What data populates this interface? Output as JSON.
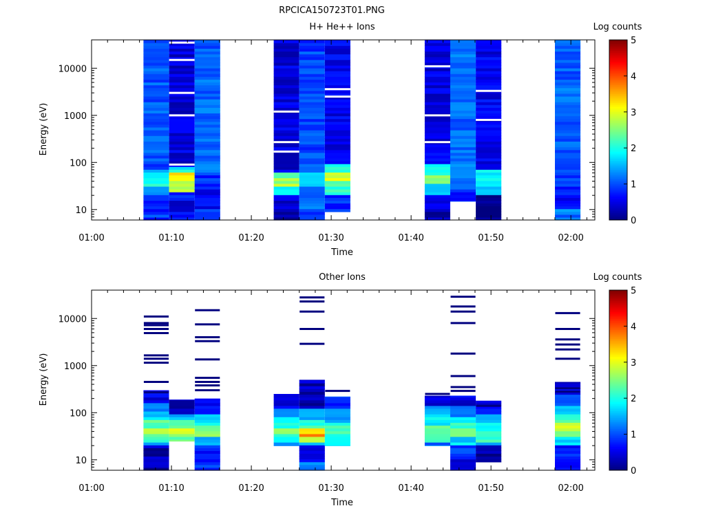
{
  "figure_title": "RPCICA150723T01.PNG",
  "colorscale": [
    "#00007f",
    "#0000ff",
    "#007fff",
    "#00ffff",
    "#7fff7f",
    "#ffff00",
    "#ff7f00",
    "#ff0000",
    "#7f0000"
  ],
  "chart_data": [
    {
      "type": "heatmap",
      "title": "H+ He++ Ions",
      "xlabel": "Time",
      "ylabel": "Energy (eV)",
      "colorbar_label": "Log counts",
      "colorbar_ticks": [
        "0",
        "1",
        "2",
        "3",
        "4",
        "5"
      ],
      "clim": [
        0,
        5
      ],
      "x_ticks": [
        "01:00",
        "01:10",
        "01:20",
        "01:30",
        "01:40",
        "01:50",
        "02:00"
      ],
      "xlim_minutes": [
        0,
        63
      ],
      "y_ticks": [
        "10",
        "100",
        "1000",
        "10000"
      ],
      "ylim": [
        6,
        40000
      ],
      "y_scale": "log",
      "columns": [
        {
          "t_start": 6.5,
          "t_end": 9.7,
          "e_min": 6,
          "e_max": 40000,
          "bands": [
            [
              6,
              9,
              0.9
            ],
            [
              9,
              20,
              0.75
            ],
            [
              20,
              30,
              1.3
            ],
            [
              30,
              45,
              2.0
            ],
            [
              45,
              70,
              1.7
            ],
            [
              70,
              110,
              0.8
            ],
            [
              110,
              40000,
              1.05
            ]
          ]
        },
        {
          "t_start": 9.7,
          "t_end": 12.9,
          "e_min": 6,
          "e_max": 40000,
          "bands": [
            [
              6,
              9,
              0.6
            ],
            [
              9,
              15,
              0.3
            ],
            [
              15,
              25,
              0.7
            ],
            [
              25,
              40,
              2.8
            ],
            [
              40,
              60,
              3.2
            ],
            [
              60,
              80,
              1.9
            ],
            [
              80,
              40000,
              0.45
            ]
          ],
          "gaps": [
            90,
            1000,
            3000,
            15000,
            35000
          ]
        },
        {
          "t_start": 12.9,
          "t_end": 16.1,
          "e_min": 6,
          "e_max": 40000,
          "bands": [
            [
              6,
              10,
              1.0
            ],
            [
              10,
              30,
              0.65
            ],
            [
              30,
              60,
              0.85
            ],
            [
              60,
              40000,
              1.1
            ]
          ]
        },
        {
          "t_start": 22.8,
          "t_end": 26.0,
          "e_min": 6,
          "e_max": 40000,
          "bands": [
            [
              6,
              9,
              0.2
            ],
            [
              9,
              20,
              0.45
            ],
            [
              20,
              30,
              1.7
            ],
            [
              30,
              45,
              2.7
            ],
            [
              45,
              60,
              2.2
            ],
            [
              60,
              40000,
              0.45
            ]
          ],
          "gaps": [
            270,
            1200,
            170
          ]
        },
        {
          "t_start": 26.0,
          "t_end": 29.2,
          "e_min": 6,
          "e_max": 40000,
          "bands": [
            [
              6,
              10,
              0.8
            ],
            [
              10,
              30,
              1.1
            ],
            [
              30,
              60,
              1.6
            ],
            [
              60,
              40000,
              0.95
            ]
          ]
        },
        {
          "t_start": 29.2,
          "t_end": 32.4,
          "e_min": 9,
          "e_max": 40000,
          "bands": [
            [
              9,
              20,
              0.8
            ],
            [
              20,
              40,
              2.2
            ],
            [
              40,
              60,
              3.0
            ],
            [
              60,
              90,
              1.9
            ],
            [
              90,
              40000,
              0.55
            ]
          ],
          "gaps": [
            2500,
            3600
          ]
        },
        {
          "t_start": 41.7,
          "t_end": 44.9,
          "e_min": 6,
          "e_max": 40000,
          "bands": [
            [
              6,
              9,
              0.2
            ],
            [
              9,
              20,
              0.6
            ],
            [
              20,
              35,
              1.8
            ],
            [
              35,
              55,
              2.5
            ],
            [
              55,
              90,
              1.9
            ],
            [
              90,
              40000,
              0.5
            ]
          ],
          "gaps": [
            270,
            1000,
            11000
          ]
        },
        {
          "t_start": 44.9,
          "t_end": 48.1,
          "e_min": 15,
          "e_max": 40000,
          "bands": [
            [
              15,
              25,
              0.7
            ],
            [
              25,
              40,
              1.0
            ],
            [
              40,
              40000,
              1.15
            ]
          ]
        },
        {
          "t_start": 48.1,
          "t_end": 51.3,
          "e_min": 6,
          "e_max": 40000,
          "bands": [
            [
              6,
              9,
              0.15
            ],
            [
              9,
              20,
              0.0
            ],
            [
              20,
              30,
              1.7
            ],
            [
              30,
              45,
              2.0
            ],
            [
              45,
              70,
              1.9
            ],
            [
              70,
              40000,
              0.55
            ]
          ],
          "gaps": [
            800,
            3300
          ]
        },
        {
          "t_start": 58.0,
          "t_end": 61.2,
          "e_min": 6,
          "e_max": 40000,
          "bands": [
            [
              6,
              10,
              1.2
            ],
            [
              10,
              20,
              0.6
            ],
            [
              20,
              100,
              0.85
            ],
            [
              100,
              40000,
              1.1
            ]
          ]
        }
      ]
    },
    {
      "type": "heatmap",
      "title": "Other Ions",
      "xlabel": "Time",
      "ylabel": "Energy (eV)",
      "colorbar_label": "Log counts",
      "colorbar_ticks": [
        "0",
        "1",
        "2",
        "3",
        "4",
        "5"
      ],
      "clim": [
        0,
        5
      ],
      "x_ticks": [
        "01:00",
        "01:10",
        "01:20",
        "01:30",
        "01:40",
        "01:50",
        "02:00"
      ],
      "xlim_minutes": [
        0,
        63
      ],
      "y_ticks": [
        "10",
        "100",
        "1000",
        "10000"
      ],
      "ylim": [
        6,
        40000
      ],
      "y_scale": "log",
      "columns": [
        {
          "t_start": 6.5,
          "t_end": 9.7,
          "e_min": 6,
          "e_max": 300,
          "bands": [
            [
              6,
              20,
              0.25
            ],
            [
              20,
              25,
              1.4
            ],
            [
              25,
              35,
              2.2
            ],
            [
              35,
              50,
              2.7
            ],
            [
              50,
              70,
              2.4
            ],
            [
              70,
              110,
              1.7
            ],
            [
              110,
              160,
              1.2
            ],
            [
              160,
              300,
              0.5
            ]
          ],
          "lines": [
            270,
            450,
            1150,
            1400,
            1650,
            4900,
            6000,
            7200,
            8000,
            11000
          ]
        },
        {
          "t_start": 9.7,
          "t_end": 12.9,
          "e_min": 25,
          "e_max": 190,
          "bands": [
            [
              25,
              35,
              2.4
            ],
            [
              35,
              50,
              3.1
            ],
            [
              50,
              70,
              2.3
            ],
            [
              70,
              100,
              1.4
            ],
            [
              100,
              190,
              0.3
            ]
          ]
        },
        {
          "t_start": 12.9,
          "t_end": 16.1,
          "e_min": 6,
          "e_max": 200,
          "bands": [
            [
              6,
              20,
              0.8
            ],
            [
              20,
              30,
              1.6
            ],
            [
              30,
              45,
              2.6
            ],
            [
              45,
              65,
              2.2
            ],
            [
              65,
              100,
              1.5
            ],
            [
              100,
              200,
              0.6
            ]
          ],
          "lines": [
            300,
            380,
            450,
            550,
            1350,
            3300,
            4000,
            7500,
            15000
          ]
        },
        {
          "t_start": 22.8,
          "t_end": 26.0,
          "e_min": 20,
          "e_max": 250,
          "bands": [
            [
              20,
              25,
              1.5
            ],
            [
              25,
              35,
              2.1
            ],
            [
              35,
              50,
              2.8
            ],
            [
              50,
              80,
              2.0
            ],
            [
              80,
              130,
              1.2
            ],
            [
              130,
              250,
              0.5
            ]
          ]
        },
        {
          "t_start": 26.0,
          "t_end": 29.2,
          "e_min": 6,
          "e_max": 500,
          "bands": [
            [
              6,
              9,
              1.2
            ],
            [
              9,
              13,
              0.5
            ],
            [
              13,
              20,
              0.3
            ],
            [
              20,
              25,
              1.7
            ],
            [
              25,
              30,
              2.6
            ],
            [
              30,
              38,
              3.7
            ],
            [
              38,
              50,
              3.2
            ],
            [
              50,
              70,
              2.1
            ],
            [
              70,
              130,
              1.4
            ],
            [
              130,
              500,
              0.3
            ]
          ],
          "lines": [
            2900,
            6000,
            14000,
            23000,
            28000
          ]
        },
        {
          "t_start": 29.2,
          "t_end": 32.4,
          "e_min": 20,
          "e_max": 220,
          "bands": [
            [
              20,
              30,
              1.7
            ],
            [
              30,
              60,
              2.2
            ],
            [
              60,
              130,
              1.5
            ],
            [
              130,
              220,
              0.9
            ]
          ],
          "lines": [
            290
          ]
        },
        {
          "t_start": 41.7,
          "t_end": 44.9,
          "e_min": 20,
          "e_max": 230,
          "bands": [
            [
              20,
              25,
              1.2
            ],
            [
              25,
              35,
              2.2
            ],
            [
              35,
              55,
              2.5
            ],
            [
              55,
              90,
              1.9
            ],
            [
              90,
              150,
              1.3
            ],
            [
              150,
              230,
              0.5
            ]
          ],
          "lines": [
            250
          ]
        },
        {
          "t_start": 44.9,
          "t_end": 48.1,
          "e_min": 6,
          "e_max": 230,
          "bands": [
            [
              6,
              10,
              0.5
            ],
            [
              10,
              20,
              1.0
            ],
            [
              20,
              30,
              1.7
            ],
            [
              30,
              50,
              2.4
            ],
            [
              50,
              80,
              2.0
            ],
            [
              80,
              140,
              1.3
            ],
            [
              140,
              230,
              0.5
            ]
          ],
          "lines": [
            290,
            350,
            600,
            1800,
            8000,
            14000,
            18000,
            29000
          ]
        },
        {
          "t_start": 48.1,
          "t_end": 51.3,
          "e_min": 9,
          "e_max": 180,
          "bands": [
            [
              9,
              20,
              0.15
            ],
            [
              20,
              25,
              1.2
            ],
            [
              25,
              40,
              2.2
            ],
            [
              40,
              60,
              2.0
            ],
            [
              60,
              100,
              1.4
            ],
            [
              100,
              180,
              0.6
            ]
          ],
          "lines": [
            140
          ]
        },
        {
          "t_start": 58.0,
          "t_end": 61.2,
          "e_min": 6,
          "e_max": 450,
          "bands": [
            [
              6,
              10,
              0.5
            ],
            [
              10,
              20,
              0.8
            ],
            [
              20,
              30,
              1.8
            ],
            [
              30,
              40,
              2.5
            ],
            [
              40,
              60,
              3.0
            ],
            [
              60,
              90,
              2.3
            ],
            [
              90,
              150,
              1.5
            ],
            [
              150,
              250,
              0.9
            ],
            [
              250,
              450,
              0.5
            ]
          ],
          "lines": [
            280,
            330,
            1400,
            2200,
            2800,
            3600,
            6000,
            13000
          ]
        }
      ]
    }
  ]
}
